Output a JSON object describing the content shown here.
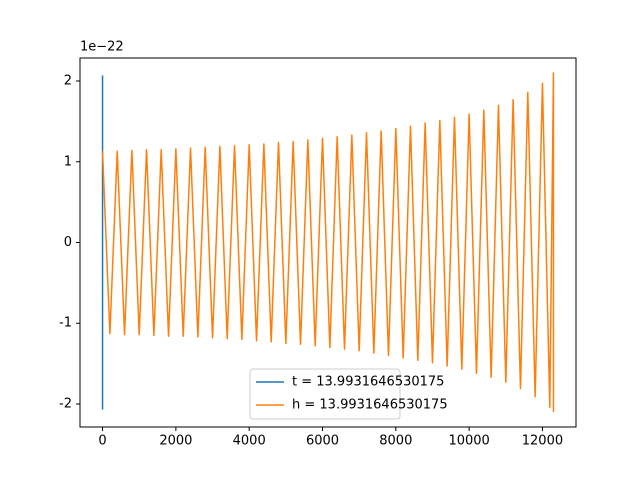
{
  "chart_data": {
    "type": "line",
    "y_offset_label": "1e−22",
    "xlim": [
      -615,
      12915
    ],
    "xticks": [
      0,
      2000,
      4000,
      6000,
      8000,
      10000,
      12000
    ],
    "ylim": [
      -2.285,
      2.285
    ],
    "yticks": [
      -2,
      -1,
      0,
      1,
      2
    ],
    "legend": "lower center",
    "grid": false,
    "series": [
      {
        "name": "t = 13.9931646530175",
        "color": "#1f77b4",
        "x": [
          0,
          0
        ],
        "values": [
          2.07,
          -2.07
        ]
      },
      {
        "name": "h = 13.9931646530175",
        "color": "#ff7f0e",
        "x": [
          0,
          200,
          400,
          600,
          800,
          1000,
          1200,
          1400,
          1600,
          1800,
          2000,
          2200,
          2400,
          2600,
          2800,
          3000,
          3200,
          3400,
          3600,
          3800,
          4000,
          4200,
          4400,
          4600,
          4800,
          5000,
          5200,
          5400,
          5600,
          5800,
          6000,
          6200,
          6400,
          6600,
          6800,
          7000,
          7200,
          7400,
          7600,
          7800,
          8000,
          8200,
          8400,
          8600,
          8800,
          9000,
          9200,
          9400,
          9600,
          9800,
          10000,
          10200,
          10400,
          10600,
          10800,
          11000,
          11200,
          11400,
          11600,
          11800,
          12000,
          12200,
          12300,
          12300
        ],
        "values": [
          1.13,
          -1.13,
          1.13,
          -1.14,
          1.14,
          -1.14,
          1.15,
          -1.15,
          1.15,
          -1.16,
          1.16,
          -1.16,
          1.17,
          -1.17,
          1.18,
          -1.18,
          1.19,
          -1.19,
          1.2,
          -1.2,
          1.21,
          -1.22,
          1.22,
          -1.23,
          1.24,
          -1.25,
          1.25,
          -1.26,
          1.27,
          -1.28,
          1.29,
          -1.3,
          1.31,
          -1.32,
          1.33,
          -1.34,
          1.36,
          -1.37,
          1.38,
          -1.4,
          1.41,
          -1.43,
          1.44,
          -1.46,
          1.48,
          -1.49,
          1.51,
          -1.53,
          1.55,
          -1.57,
          1.59,
          -1.62,
          1.64,
          -1.67,
          1.7,
          -1.73,
          1.77,
          -1.81,
          1.86,
          -1.91,
          1.97,
          -2.04,
          2.1,
          -2.1
        ]
      }
    ]
  }
}
